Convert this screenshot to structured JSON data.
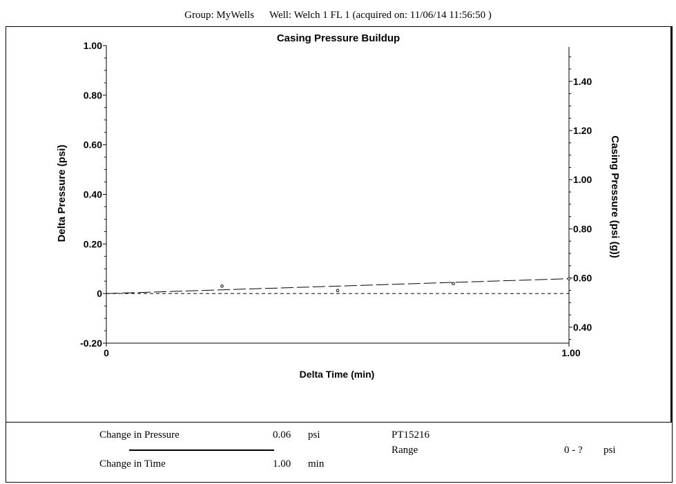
{
  "header": {
    "group": "Group: MyWells",
    "well": "Well: Welch 1 FL 1 (acquired on: 11/06/14 11:56:50 )"
  },
  "chart_data": {
    "type": "line",
    "title": "Casing Pressure Buildup",
    "xlabel": "Delta Time (min)",
    "ylabel": "Delta Pressure (psi)",
    "y2label": "Casing Pressure (psi (g))",
    "xlim": [
      0,
      1.0
    ],
    "ylim": [
      -0.2,
      1.0
    ],
    "y2lim": [
      0.335,
      1.54
    ],
    "x_ticks": [
      {
        "value": 0,
        "label": "0"
      },
      {
        "value": 1.0,
        "label": "1.00"
      }
    ],
    "y_ticks": [
      {
        "value": -0.2,
        "label": "-0.20"
      },
      {
        "value": 0,
        "label": "0"
      },
      {
        "value": 0.2,
        "label": "0.20"
      },
      {
        "value": 0.4,
        "label": "0.40"
      },
      {
        "value": 0.6,
        "label": "0.60"
      },
      {
        "value": 0.8,
        "label": "0.80"
      },
      {
        "value": 1.0,
        "label": "1.00"
      }
    ],
    "y2_ticks": [
      {
        "value": 0.4,
        "label": "0.40"
      },
      {
        "value": 0.6,
        "label": "0.60"
      },
      {
        "value": 0.8,
        "label": "0.80"
      },
      {
        "value": 1.0,
        "label": "1.00"
      },
      {
        "value": 1.2,
        "label": "1.20"
      },
      {
        "value": 1.4,
        "label": "1.40"
      }
    ],
    "grid": false,
    "series": [
      {
        "style": "long-dash",
        "x": [
          0,
          1.0
        ],
        "y": [
          0,
          0.06
        ]
      },
      {
        "style": "short-dash",
        "x": [
          0,
          1.0
        ],
        "y": [
          0,
          0
        ]
      },
      {
        "style": "markers",
        "x": [
          0.25,
          0.5,
          0.75,
          1.0
        ],
        "y": [
          0.03,
          0.012,
          0.04,
          0.06
        ]
      }
    ]
  },
  "footer": {
    "change_pressure_label": "Change in Pressure",
    "change_pressure_value": "0.06",
    "change_pressure_unit": "psi",
    "change_time_label": "Change in Time",
    "change_time_value": "1.00",
    "change_time_unit": "min",
    "sensor_id": "PT15216",
    "range_label": "Range",
    "range_value": "0 - ?",
    "range_unit": "psi"
  }
}
